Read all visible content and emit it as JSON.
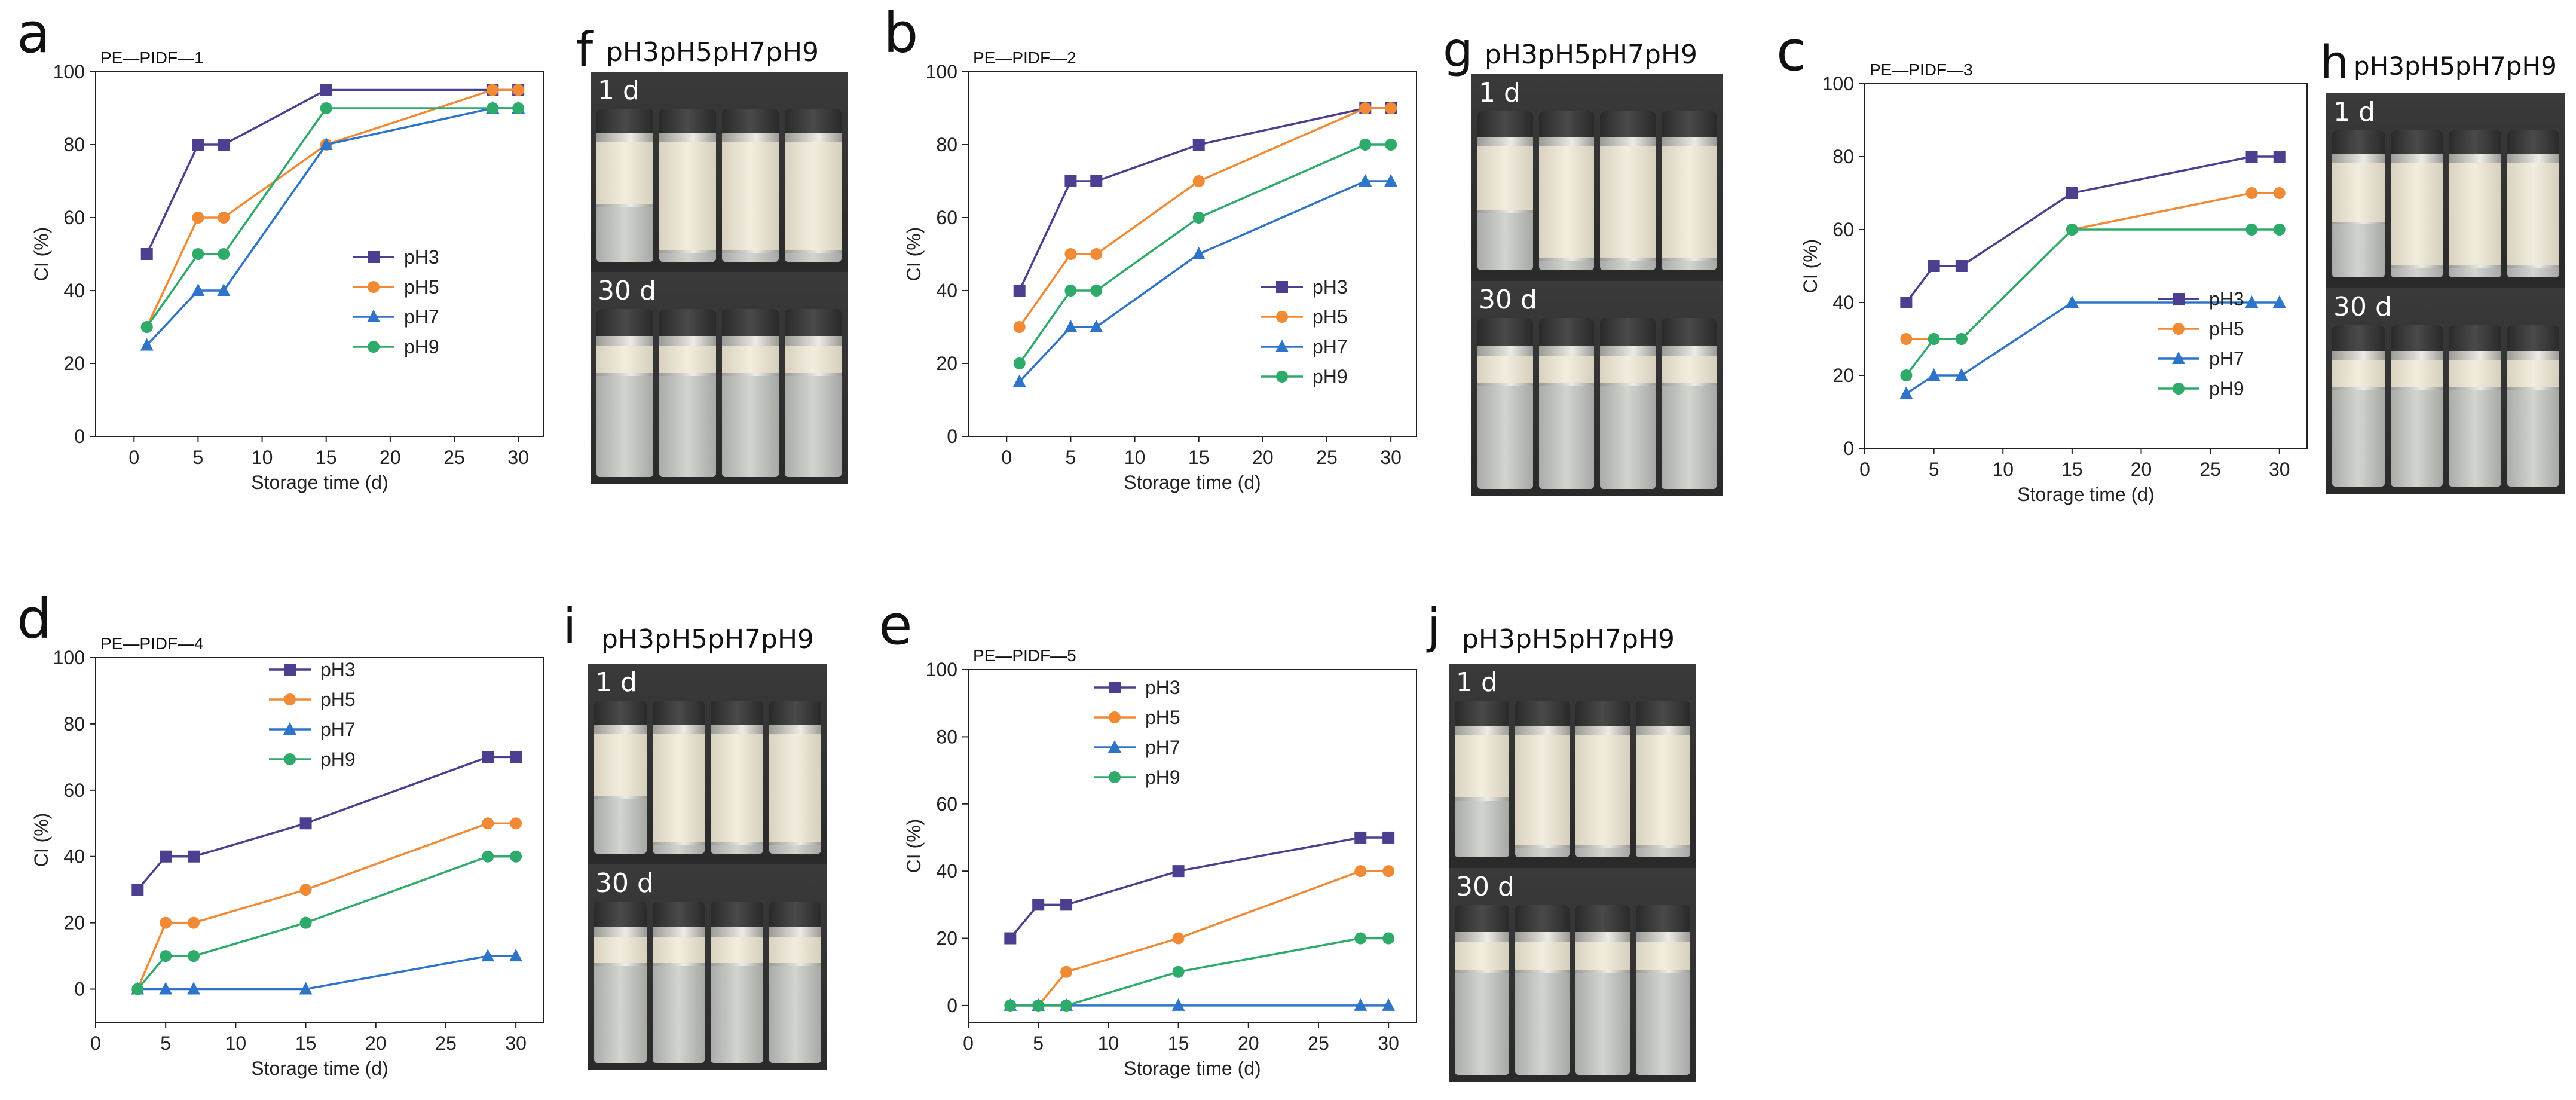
{
  "chart_data": [
    {
      "type": "line",
      "letter": "a",
      "title": "PE—PIDF—1",
      "xlabel": "Storage time (d)",
      "ylabel": "CI (%)",
      "xlim": [
        -3,
        32
      ],
      "ylim": [
        0,
        100
      ],
      "xticks": [
        0,
        5,
        10,
        15,
        20,
        25,
        30
      ],
      "yticks": [
        0,
        20,
        40,
        60,
        80,
        100
      ],
      "legend_position": "right-middle",
      "series": [
        {
          "name": "pH3",
          "x": [
            1,
            5,
            7,
            15,
            28,
            30
          ],
          "y": [
            50,
            80,
            80,
            95,
            95,
            95
          ]
        },
        {
          "name": "pH5",
          "x": [
            1,
            5,
            7,
            15,
            28,
            30
          ],
          "y": [
            30,
            60,
            60,
            80,
            95,
            95
          ]
        },
        {
          "name": "pH7",
          "x": [
            1,
            5,
            7,
            15,
            28,
            30
          ],
          "y": [
            25,
            40,
            40,
            80,
            90,
            90
          ]
        },
        {
          "name": "pH9",
          "x": [
            1,
            5,
            7,
            15,
            28,
            30
          ],
          "y": [
            30,
            50,
            50,
            90,
            90,
            90
          ]
        }
      ]
    },
    {
      "type": "line",
      "letter": "b",
      "title": "PE—PIDF—2",
      "xlabel": "Storage time (d)",
      "ylabel": "CI (%)",
      "xlim": [
        -3,
        32
      ],
      "ylim": [
        0,
        100
      ],
      "xticks": [
        0,
        5,
        10,
        15,
        20,
        25,
        30
      ],
      "yticks": [
        0,
        20,
        40,
        60,
        80,
        100
      ],
      "legend_position": "bottom-right",
      "series": [
        {
          "name": "pH3",
          "x": [
            1,
            5,
            7,
            15,
            28,
            30
          ],
          "y": [
            40,
            70,
            70,
            80,
            90,
            90
          ]
        },
        {
          "name": "pH5",
          "x": [
            1,
            5,
            7,
            15,
            28,
            30
          ],
          "y": [
            30,
            50,
            50,
            70,
            90,
            90
          ]
        },
        {
          "name": "pH7",
          "x": [
            1,
            5,
            7,
            15,
            28,
            30
          ],
          "y": [
            15,
            30,
            30,
            50,
            70,
            70
          ]
        },
        {
          "name": "pH9",
          "x": [
            1,
            5,
            7,
            15,
            28,
            30
          ],
          "y": [
            20,
            40,
            40,
            60,
            80,
            80
          ]
        }
      ]
    },
    {
      "type": "line",
      "letter": "c",
      "title": "PE—PIDF—3",
      "xlabel": "Storage time (d)",
      "ylabel": "CI (%)",
      "xlim": [
        0,
        32
      ],
      "ylim": [
        0,
        100
      ],
      "xticks": [
        0,
        5,
        10,
        15,
        20,
        25,
        30
      ],
      "yticks": [
        0,
        20,
        40,
        60,
        80,
        100
      ],
      "legend_position": "bottom-right",
      "series": [
        {
          "name": "pH3",
          "x": [
            3,
            5,
            7,
            15,
            28,
            30
          ],
          "y": [
            40,
            50,
            50,
            70,
            80,
            80
          ]
        },
        {
          "name": "pH5",
          "x": [
            3,
            5,
            7,
            15,
            28,
            30
          ],
          "y": [
            30,
            30,
            30,
            60,
            70,
            70
          ]
        },
        {
          "name": "pH7",
          "x": [
            3,
            5,
            7,
            15,
            28,
            30
          ],
          "y": [
            15,
            20,
            20,
            40,
            40,
            40
          ]
        },
        {
          "name": "pH9",
          "x": [
            3,
            5,
            7,
            15,
            28,
            30
          ],
          "y": [
            20,
            30,
            30,
            60,
            60,
            60
          ]
        }
      ]
    },
    {
      "type": "line",
      "letter": "d",
      "title": "PE—PIDF—4",
      "xlabel": "Storage time (d)",
      "ylabel": "CI (%)",
      "xlim": [
        0,
        32
      ],
      "ylim": [
        -10,
        100
      ],
      "xticks": [
        0,
        5,
        10,
        15,
        20,
        25,
        30
      ],
      "yticks": [
        0,
        20,
        40,
        60,
        80,
        100
      ],
      "legend_position": "top-middle",
      "series": [
        {
          "name": "pH3",
          "x": [
            3,
            5,
            7,
            15,
            28,
            30
          ],
          "y": [
            30,
            40,
            40,
            50,
            70,
            70
          ]
        },
        {
          "name": "pH5",
          "x": [
            3,
            5,
            7,
            15,
            28,
            30
          ],
          "y": [
            0,
            20,
            20,
            30,
            50,
            50
          ]
        },
        {
          "name": "pH7",
          "x": [
            3,
            5,
            7,
            15,
            28,
            30
          ],
          "y": [
            0,
            0,
            0,
            0,
            10,
            10
          ]
        },
        {
          "name": "pH9",
          "x": [
            3,
            5,
            7,
            15,
            28,
            30
          ],
          "y": [
            0,
            10,
            10,
            20,
            40,
            40
          ]
        }
      ]
    },
    {
      "type": "line",
      "letter": "e",
      "title": "PE—PIDF—5",
      "xlabel": "Storage time (d)",
      "ylabel": "CI (%)",
      "xlim": [
        0,
        32
      ],
      "ylim": [
        -5,
        100
      ],
      "xticks": [
        0,
        5,
        10,
        15,
        20,
        25,
        30
      ],
      "yticks": [
        0,
        20,
        40,
        60,
        80,
        100
      ],
      "legend_position": "top-left",
      "series": [
        {
          "name": "pH3",
          "x": [
            3,
            5,
            7,
            15,
            28,
            30
          ],
          "y": [
            20,
            30,
            30,
            40,
            50,
            50
          ]
        },
        {
          "name": "pH5",
          "x": [
            3,
            5,
            7,
            15,
            28,
            30
          ],
          "y": [
            0,
            0,
            10,
            20,
            40,
            40
          ]
        },
        {
          "name": "pH7",
          "x": [
            3,
            5,
            7,
            15,
            28,
            30
          ],
          "y": [
            0,
            0,
            0,
            0,
            0,
            0
          ]
        },
        {
          "name": "pH9",
          "x": [
            3,
            5,
            7,
            15,
            28,
            30
          ],
          "y": [
            0,
            0,
            0,
            10,
            20,
            20
          ]
        }
      ]
    }
  ],
  "series_colors": {
    "pH3": "#4b3f8f",
    "pH5": "#f08a35",
    "pH7": "#2e74c9",
    "pH9": "#2eaa6b"
  },
  "series_markers": {
    "pH3": "square",
    "pH5": "circle",
    "pH7": "triangle",
    "pH9": "circle"
  },
  "photos": [
    {
      "letter": "f",
      "title": "pH3pH5pH7pH9",
      "day1_label": "1 d",
      "day30_label": "30 d"
    },
    {
      "letter": "g",
      "title": "pH3pH5pH7pH9",
      "day1_label": "1 d",
      "day30_label": "30 d"
    },
    {
      "letter": "h",
      "title": "pH3pH5pH7pH9",
      "day1_label": "1 d",
      "day30_label": "30 d"
    },
    {
      "letter": "i",
      "title": "pH3pH5pH7pH9",
      "day1_label": "1 d",
      "day30_label": "30 d"
    },
    {
      "letter": "j",
      "title": "pH3pH5pH7pH9",
      "day1_label": "1 d",
      "day30_label": "30 d"
    }
  ]
}
